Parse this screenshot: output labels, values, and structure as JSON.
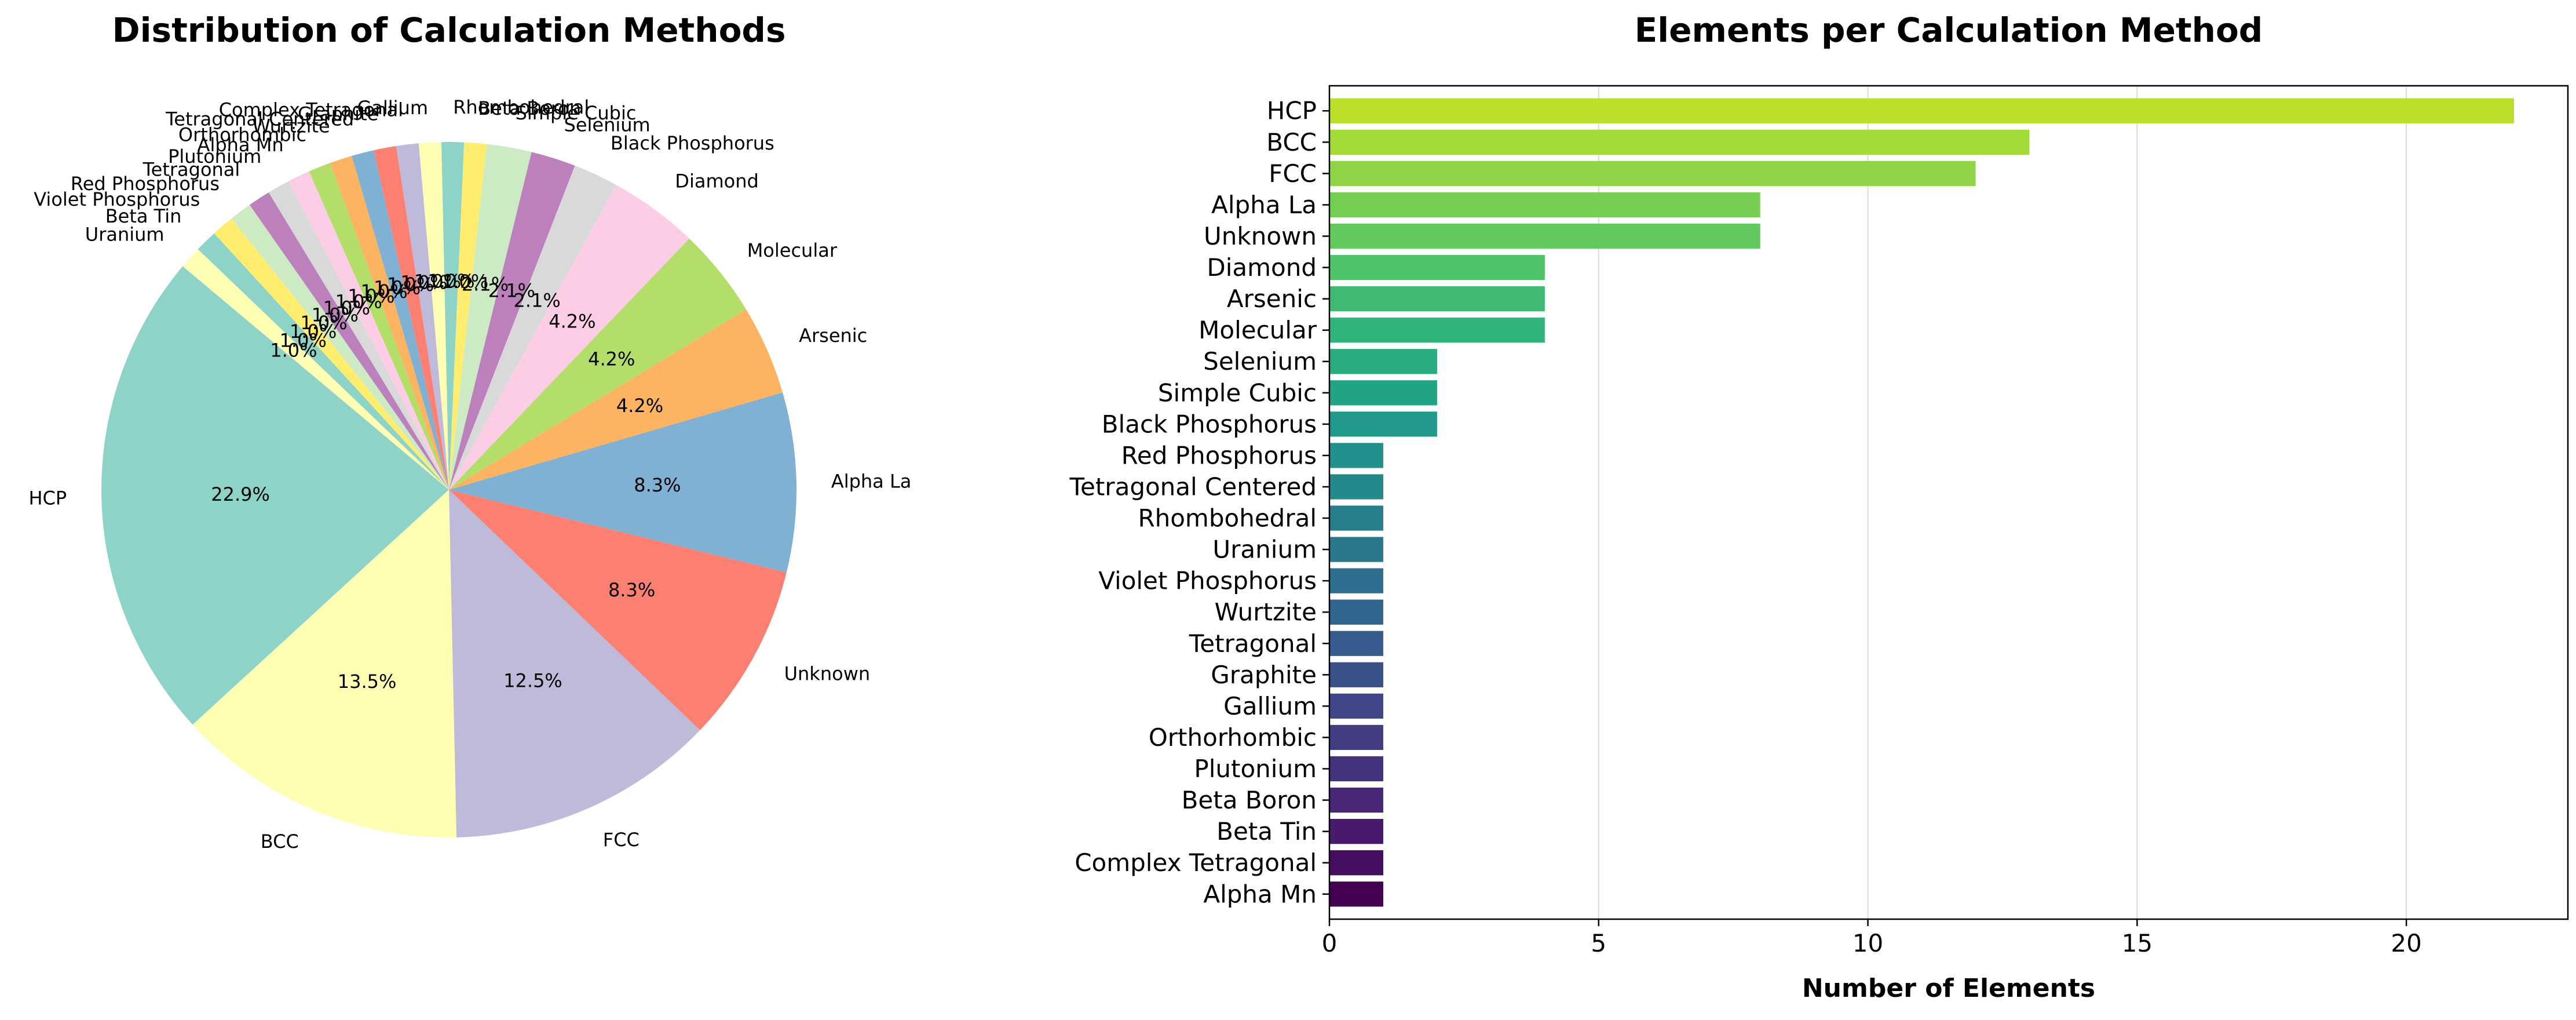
{
  "chart_data": [
    {
      "type": "pie",
      "title": "Distribution of Calculation Methods",
      "start_angle_deg": 140,
      "direction": "counterclockwise",
      "slices": [
        {
          "label": "HCP",
          "value": 22,
          "pct": "22.9%",
          "color": "#8dd3c7"
        },
        {
          "label": "BCC",
          "value": 13,
          "pct": "13.5%",
          "color": "#ffffb3"
        },
        {
          "label": "FCC",
          "value": 12,
          "pct": "12.5%",
          "color": "#bebada"
        },
        {
          "label": "Unknown",
          "value": 8,
          "pct": "8.3%",
          "color": "#fb8072"
        },
        {
          "label": "Alpha La",
          "value": 8,
          "pct": "8.3%",
          "color": "#80b1d3"
        },
        {
          "label": "Arsenic",
          "value": 4,
          "pct": "4.2%",
          "color": "#fdb462"
        },
        {
          "label": "Molecular",
          "value": 4,
          "pct": "4.2%",
          "color": "#b3de69"
        },
        {
          "label": "Diamond",
          "value": 4,
          "pct": "4.2%",
          "color": "#fccde5"
        },
        {
          "label": "Black Phosphorus",
          "value": 2,
          "pct": "2.1%",
          "color": "#d9d9d9"
        },
        {
          "label": "Selenium",
          "value": 2,
          "pct": "2.1%",
          "color": "#bc80bd"
        },
        {
          "label": "Simple Cubic",
          "value": 2,
          "pct": "2.1%",
          "color": "#ccebc5"
        },
        {
          "label": "Beta Boron",
          "value": 1,
          "pct": "1.0%",
          "color": "#ffed6f"
        },
        {
          "label": "Rhombohedral",
          "value": 1,
          "pct": "1.0%",
          "color": "#8dd3c7"
        },
        {
          "label": "Gallium",
          "value": 1,
          "pct": "1.0%",
          "color": "#ffffb3"
        },
        {
          "label": "Complex Tetragonal",
          "value": 1,
          "pct": "1.0%",
          "color": "#bebada"
        },
        {
          "label": "Graphite",
          "value": 1,
          "pct": "1.0%",
          "color": "#fb8072"
        },
        {
          "label": "Tetragonal Centered",
          "value": 1,
          "pct": "1.0%",
          "color": "#80b1d3"
        },
        {
          "label": "Wurtzite",
          "value": 1,
          "pct": "1.0%",
          "color": "#fdb462"
        },
        {
          "label": "Orthorhombic",
          "value": 1,
          "pct": "1.0%",
          "color": "#b3de69"
        },
        {
          "label": "Alpha Mn",
          "value": 1,
          "pct": "1.0%",
          "color": "#fccde5"
        },
        {
          "label": "Plutonium",
          "value": 1,
          "pct": "1.0%",
          "color": "#d9d9d9"
        },
        {
          "label": "Tetragonal",
          "value": 1,
          "pct": "1.0%",
          "color": "#bc80bd"
        },
        {
          "label": "Red Phosphorus",
          "value": 1,
          "pct": "1.0%",
          "color": "#ccebc5"
        },
        {
          "label": "Violet Phosphorus",
          "value": 1,
          "pct": "1.0%",
          "color": "#ffed6f"
        },
        {
          "label": "Beta Tin",
          "value": 1,
          "pct": "1.0%",
          "color": "#8dd3c7"
        },
        {
          "label": "Uranium",
          "value": 1,
          "pct": "1.0%",
          "color": "#ffffb3"
        }
      ]
    },
    {
      "type": "bar",
      "orientation": "horizontal",
      "title": "Elements per Calculation Method",
      "xlabel": "Number of Elements",
      "ylabel": "",
      "xlim": [
        0,
        23
      ],
      "xticks": [
        0,
        5,
        10,
        15,
        20
      ],
      "grid": "x",
      "categories": [
        "HCP",
        "BCC",
        "FCC",
        "Alpha La",
        "Unknown",
        "Diamond",
        "Arsenic",
        "Molecular",
        "Selenium",
        "Simple Cubic",
        "Black Phosphorus",
        "Red Phosphorus",
        "Tetragonal Centered",
        "Rhombohedral",
        "Uranium",
        "Violet Phosphorus",
        "Wurtzite",
        "Tetragonal",
        "Graphite",
        "Gallium",
        "Orthorhombic",
        "Plutonium",
        "Beta Boron",
        "Beta Tin",
        "Complex Tetragonal",
        "Alpha Mn"
      ],
      "values": [
        22,
        13,
        12,
        8,
        8,
        4,
        4,
        4,
        2,
        2,
        2,
        1,
        1,
        1,
        1,
        1,
        1,
        1,
        1,
        1,
        1,
        1,
        1,
        1,
        1,
        1
      ],
      "colormap": "viridis"
    }
  ]
}
